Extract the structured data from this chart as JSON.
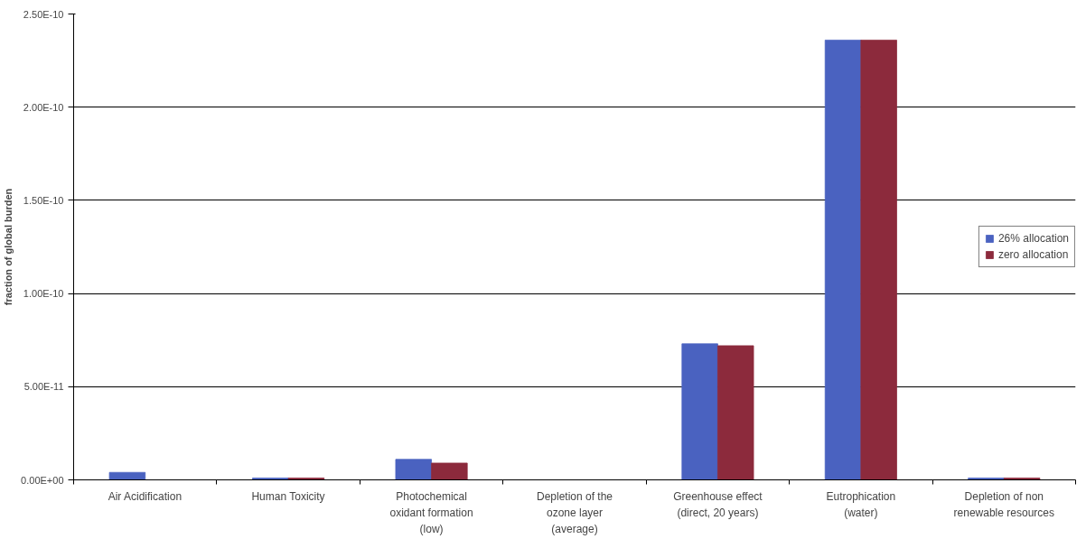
{
  "chart_data": {
    "type": "bar",
    "ylabel": "fraction of global burden",
    "categories": [
      "Air Acidification",
      "Human Toxicity",
      "Photochemical oxidant formation (low)",
      "Depletion of the ozone layer (average)",
      "Greenhouse effect (direct, 20 years)",
      "Eutrophication (water)",
      "Depletion of non renewable resources"
    ],
    "series": [
      {
        "name": "26% allocation",
        "color": "#4a62c0",
        "values": [
          4e-12,
          1e-12,
          1.1e-11,
          0,
          7.3e-11,
          2.36e-10,
          1e-12
        ]
      },
      {
        "name": "zero allocation",
        "color": "#8c2a3c",
        "values": [
          0,
          1e-12,
          9e-12,
          0,
          7.2e-11,
          2.36e-10,
          1e-12
        ]
      }
    ],
    "ylim": [
      0,
      2.5e-10
    ],
    "yticks": [
      {
        "value": 0,
        "label": "0.00E+00"
      },
      {
        "value": 5e-11,
        "label": "5.00E-11"
      },
      {
        "value": 1e-10,
        "label": "1.00E-10"
      },
      {
        "value": 1.5e-10,
        "label": "1.50E-10"
      },
      {
        "value": 2e-10,
        "label": "2.00E-10"
      },
      {
        "value": 2.5e-10,
        "label": "2.50E-10"
      }
    ],
    "grid": "y",
    "legend": "right"
  }
}
